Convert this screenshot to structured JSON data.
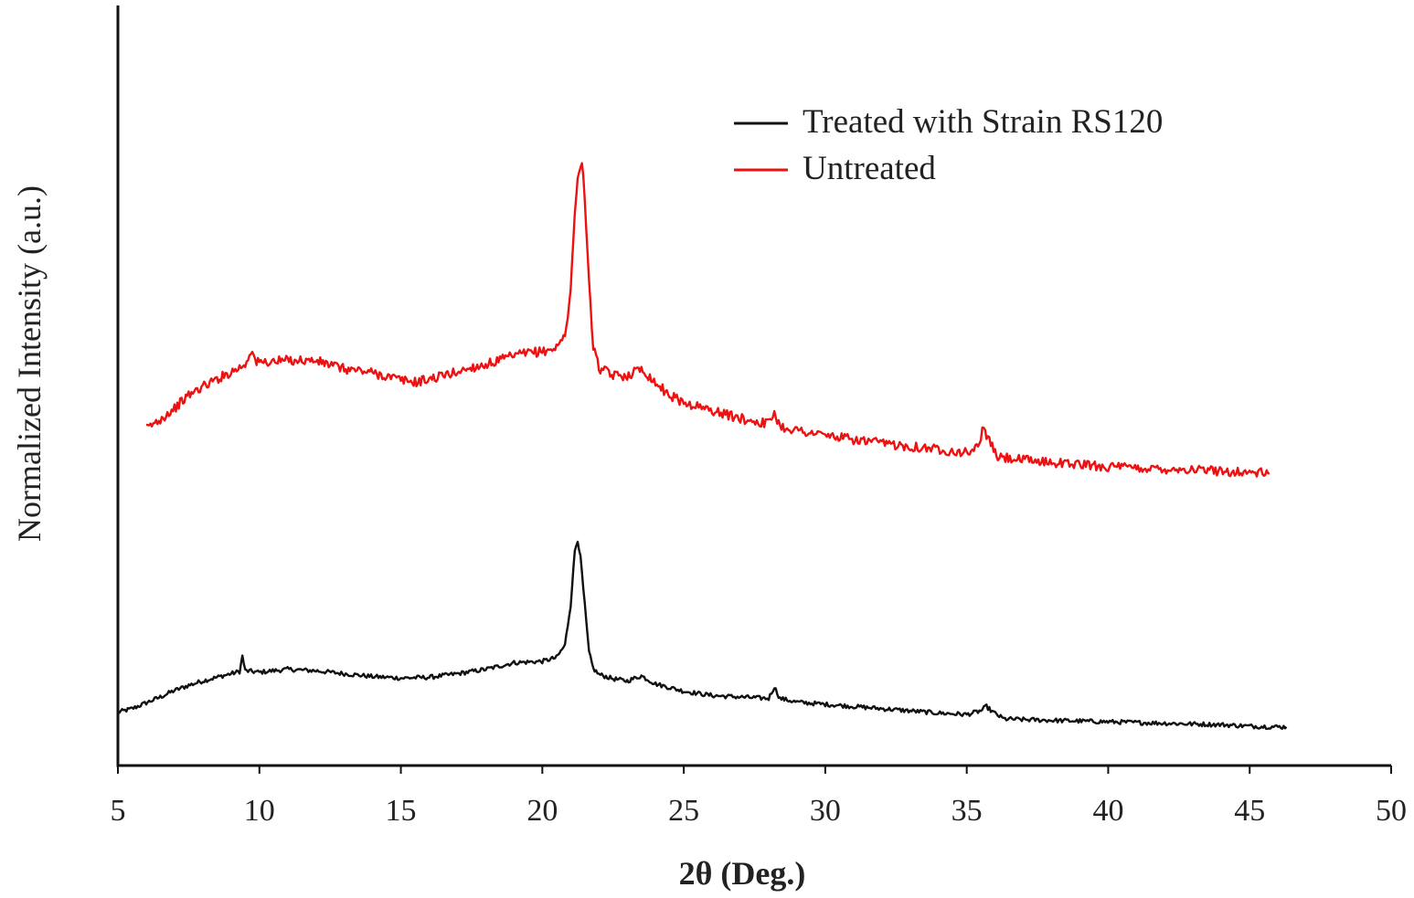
{
  "chart_data": {
    "type": "line",
    "title": "",
    "xlabel": "2θ (Deg.)",
    "ylabel": "Normalized Intensity (a.u.)",
    "xlim": [
      5,
      50
    ],
    "ylim": [
      0,
      100
    ],
    "xticks": [
      5,
      10,
      15,
      20,
      25,
      30,
      35,
      40,
      45,
      50
    ],
    "y_tick_labels": false,
    "grid": false,
    "legend": "top-right",
    "series": [
      {
        "name": "Treated with Strain RS120",
        "color": "#111111",
        "points": [
          [
            5.0,
            7.3
          ],
          [
            5.5,
            7.8
          ],
          [
            6.0,
            8.6
          ],
          [
            6.5,
            9.4
          ],
          [
            7.0,
            10.3
          ],
          [
            7.5,
            11.0
          ],
          [
            8.0,
            11.6
          ],
          [
            8.5,
            12.1
          ],
          [
            9.0,
            12.6
          ],
          [
            9.3,
            12.9
          ],
          [
            9.4,
            15.0
          ],
          [
            9.5,
            13.0
          ],
          [
            10.0,
            12.8
          ],
          [
            11.0,
            13.2
          ],
          [
            12.0,
            13.0
          ],
          [
            13.0,
            12.6
          ],
          [
            14.0,
            12.2
          ],
          [
            15.0,
            12.0
          ],
          [
            16.0,
            12.1
          ],
          [
            17.0,
            12.6
          ],
          [
            18.0,
            13.2
          ],
          [
            19.0,
            14.1
          ],
          [
            20.0,
            14.3
          ],
          [
            20.5,
            14.8
          ],
          [
            20.8,
            16.5
          ],
          [
            21.0,
            22.0
          ],
          [
            21.15,
            29.5
          ],
          [
            21.25,
            31.0
          ],
          [
            21.35,
            28.5
          ],
          [
            21.5,
            22.0
          ],
          [
            21.65,
            15.5
          ],
          [
            21.8,
            13.3
          ],
          [
            22.0,
            12.5
          ],
          [
            22.5,
            11.9
          ],
          [
            23.0,
            11.6
          ],
          [
            23.5,
            12.3
          ],
          [
            24.0,
            11.2
          ],
          [
            25.0,
            10.2
          ],
          [
            26.0,
            9.6
          ],
          [
            27.0,
            9.4
          ],
          [
            28.0,
            9.2
          ],
          [
            28.2,
            10.8
          ],
          [
            28.4,
            9.2
          ],
          [
            29.0,
            8.7
          ],
          [
            30.0,
            8.4
          ],
          [
            31.0,
            8.1
          ],
          [
            32.0,
            7.8
          ],
          [
            33.0,
            7.5
          ],
          [
            34.0,
            7.2
          ],
          [
            35.0,
            7.0
          ],
          [
            35.5,
            7.5
          ],
          [
            35.7,
            8.1
          ],
          [
            35.9,
            7.4
          ],
          [
            36.3,
            6.4
          ],
          [
            37.0,
            6.3
          ],
          [
            38.0,
            6.2
          ],
          [
            39.0,
            6.1
          ],
          [
            40.0,
            6.0
          ],
          [
            41.0,
            5.9
          ],
          [
            42.0,
            5.8
          ],
          [
            43.0,
            5.7
          ],
          [
            44.0,
            5.6
          ],
          [
            45.0,
            5.4
          ],
          [
            46.0,
            5.3
          ],
          [
            46.3,
            5.3
          ]
        ]
      },
      {
        "name": "Untreated",
        "color": "#ee1111",
        "points": [
          [
            6.0,
            46.2
          ],
          [
            6.5,
            47.5
          ],
          [
            7.0,
            49.0
          ],
          [
            7.5,
            50.8
          ],
          [
            8.0,
            52.0
          ],
          [
            8.5,
            53.0
          ],
          [
            9.0,
            54.0
          ],
          [
            9.5,
            55.0
          ],
          [
            9.7,
            57.0
          ],
          [
            9.9,
            55.3
          ],
          [
            10.5,
            55.4
          ],
          [
            11.0,
            55.6
          ],
          [
            11.5,
            55.6
          ],
          [
            12.0,
            55.5
          ],
          [
            12.5,
            55.0
          ],
          [
            13.0,
            54.4
          ],
          [
            13.5,
            54.2
          ],
          [
            14.0,
            53.9
          ],
          [
            14.5,
            53.4
          ],
          [
            15.0,
            52.9
          ],
          [
            15.5,
            52.6
          ],
          [
            16.0,
            53.0
          ],
          [
            16.5,
            53.5
          ],
          [
            17.0,
            54.0
          ],
          [
            17.5,
            54.6
          ],
          [
            18.0,
            55.0
          ],
          [
            18.5,
            55.6
          ],
          [
            19.0,
            56.2
          ],
          [
            19.5,
            56.6
          ],
          [
            20.0,
            56.8
          ],
          [
            20.5,
            57.3
          ],
          [
            20.8,
            59.0
          ],
          [
            21.0,
            65.0
          ],
          [
            21.15,
            76.0
          ],
          [
            21.3,
            82.0
          ],
          [
            21.4,
            83.0
          ],
          [
            21.5,
            78.0
          ],
          [
            21.65,
            66.0
          ],
          [
            21.8,
            57.5
          ],
          [
            22.0,
            54.5
          ],
          [
            22.5,
            53.5
          ],
          [
            23.0,
            53.5
          ],
          [
            23.5,
            54.5
          ],
          [
            24.0,
            52.5
          ],
          [
            24.5,
            50.8
          ],
          [
            25.0,
            49.8
          ],
          [
            26.0,
            48.7
          ],
          [
            27.0,
            47.6
          ],
          [
            28.0,
            46.9
          ],
          [
            28.2,
            48.5
          ],
          [
            28.4,
            46.5
          ],
          [
            29.0,
            46.0
          ],
          [
            30.0,
            45.3
          ],
          [
            31.0,
            44.7
          ],
          [
            32.0,
            44.2
          ],
          [
            33.0,
            43.8
          ],
          [
            34.0,
            43.4
          ],
          [
            35.0,
            42.9
          ],
          [
            35.4,
            43.8
          ],
          [
            35.6,
            46.4
          ],
          [
            35.8,
            44.4
          ],
          [
            36.1,
            42.3
          ],
          [
            37.0,
            41.9
          ],
          [
            38.0,
            41.6
          ],
          [
            39.0,
            41.3
          ],
          [
            40.0,
            41.0
          ],
          [
            41.0,
            40.8
          ],
          [
            42.0,
            40.7
          ],
          [
            43.0,
            40.6
          ],
          [
            44.0,
            40.4
          ],
          [
            45.0,
            40.2
          ],
          [
            45.7,
            40.1
          ]
        ]
      }
    ]
  }
}
